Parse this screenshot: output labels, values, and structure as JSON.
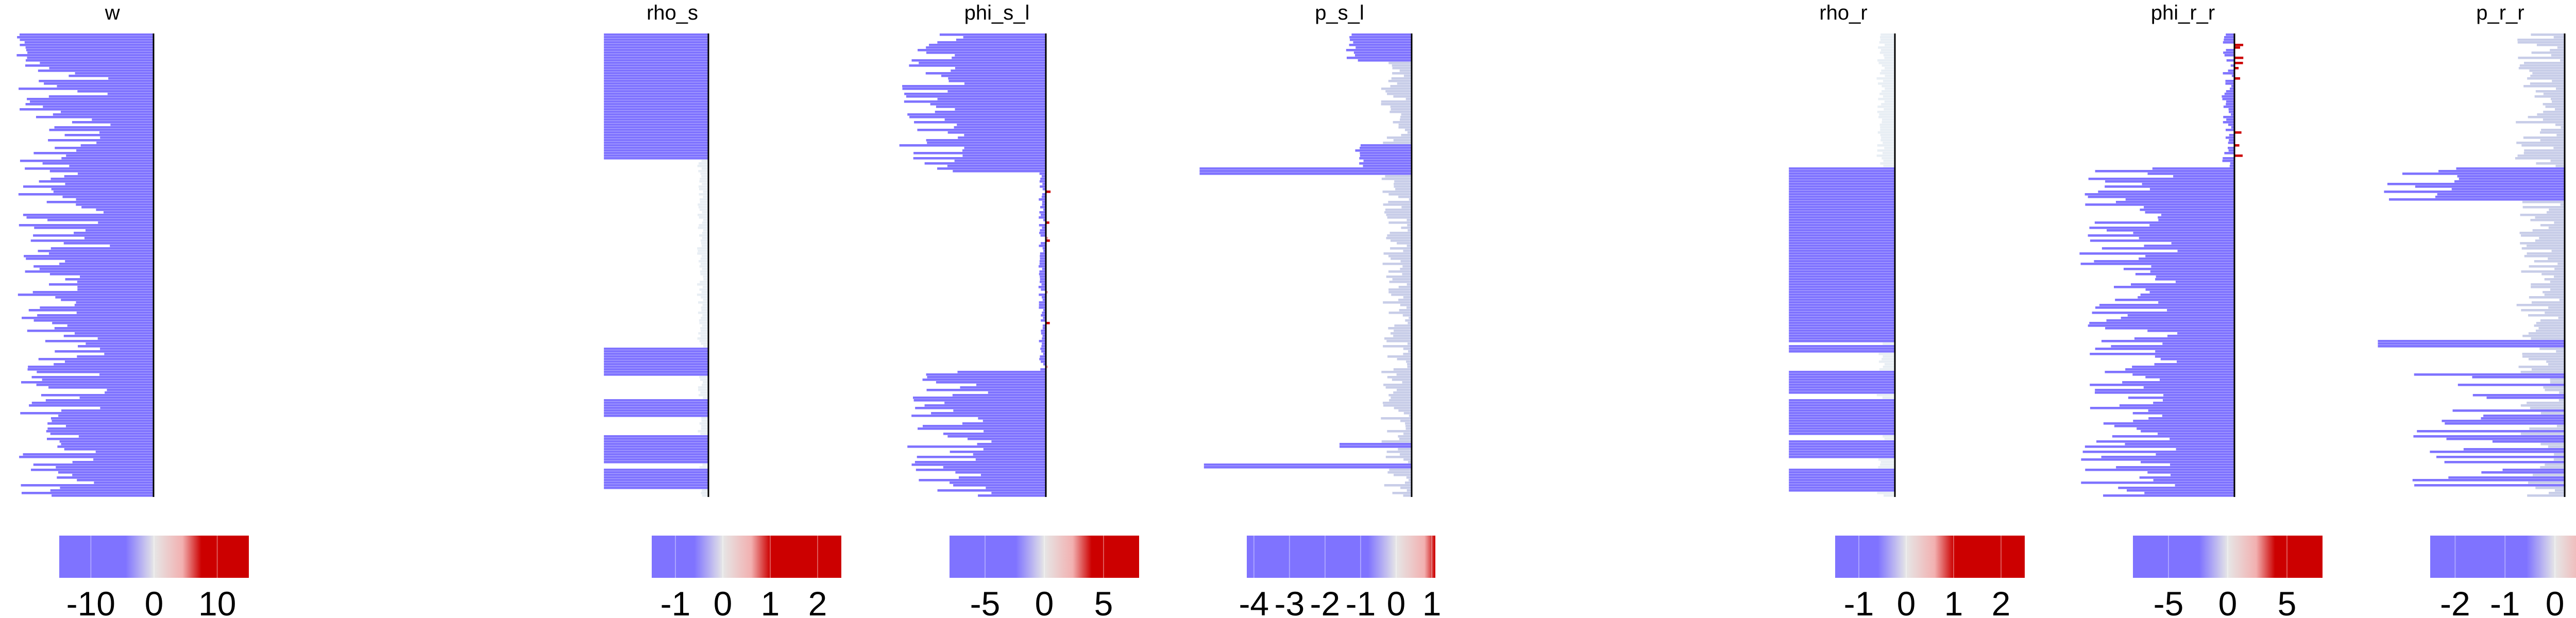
{
  "chart_data": {
    "type": "bar",
    "orientation": "horizontal",
    "grid": false,
    "colors": {
      "negative": "#7f73ff",
      "positive": "#cc0000",
      "neutral": "#e6e6e6",
      "axis": "#000000"
    },
    "panels": [
      {
        "title": "w",
        "xlim": [
          -16,
          0
        ],
        "colorbar": {
          "range": [
            -15,
            15
          ],
          "ticks": [
            "-10",
            "0",
            "10"
          ]
        }
      },
      {
        "title": "rho_s",
        "xlim": [
          -1.3,
          0.2
        ],
        "colorbar": {
          "range": [
            -1.5,
            2.5
          ],
          "ticks": [
            "-1",
            "0",
            "1",
            "2"
          ]
        }
      },
      {
        "title": "phi_s_l",
        "xlim": [
          -12,
          0.6
        ],
        "colorbar": {
          "range": [
            -8,
            8
          ],
          "ticks": [
            "-5",
            "0",
            "5"
          ]
        }
      },
      {
        "title": "p_s_l",
        "xlim": [
          -4.2,
          0.3
        ],
        "colorbar": {
          "range": [
            -4.2,
            1.1
          ],
          "ticks": [
            "-4",
            "-3",
            "-2",
            "-1",
            "0",
            "1"
          ]
        }
      },
      {
        "title": "rho_r",
        "xlim": [
          -1.3,
          0.2
        ],
        "colorbar": {
          "range": [
            -1.5,
            2.5
          ],
          "ticks": [
            "-1",
            "0",
            "1",
            "2"
          ]
        }
      },
      {
        "title": "phi_r_r",
        "xlim": [
          -12,
          1.5
        ],
        "colorbar": {
          "range": [
            -8,
            8
          ],
          "ticks": [
            "-5",
            "0",
            "5"
          ]
        }
      },
      {
        "title": "p_r_r",
        "xlim": [
          -2.5,
          0.2
        ],
        "colorbar": {
          "range": [
            -2.5,
            1.3
          ],
          "ticks": [
            "-2",
            "-1",
            "0",
            "1"
          ]
        }
      }
    ]
  }
}
